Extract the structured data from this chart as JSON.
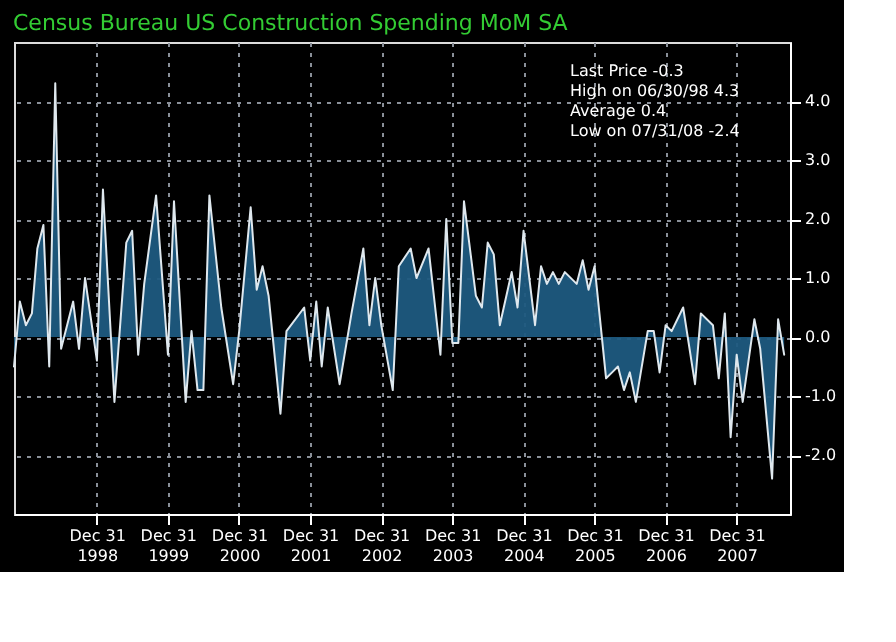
{
  "chart_data": {
    "type": "area",
    "title": "Census Bureau US Construction Spending MoM SA",
    "annotations": [
      "Last Price -0.3",
      "High on 06/30/98 4.3",
      "Average 0.4",
      "Low on 07/31/08 -2.4"
    ],
    "xlim": [
      "1997-11-01",
      "2008-10-01"
    ],
    "xticks": [
      {
        "value": "1998-12-31",
        "label": "Dec 31\n1998"
      },
      {
        "value": "1999-12-31",
        "label": "Dec 31\n1999"
      },
      {
        "value": "2000-12-31",
        "label": "Dec 31\n2000"
      },
      {
        "value": "2001-12-31",
        "label": "Dec 31\n2001"
      },
      {
        "value": "2002-12-31",
        "label": "Dec 31\n2002"
      },
      {
        "value": "2003-12-31",
        "label": "Dec 31\n2003"
      },
      {
        "value": "2004-12-31",
        "label": "Dec 31\n2004"
      },
      {
        "value": "2005-12-31",
        "label": "Dec 31\n2005"
      },
      {
        "value": "2006-12-31",
        "label": "Dec 31\n2006"
      },
      {
        "value": "2007-12-31",
        "label": "Dec 31\n2007"
      }
    ],
    "ylim": [
      -3.0,
      5.0
    ],
    "yticks": [
      {
        "value": -2,
        "label": "-2.0"
      },
      {
        "value": -1,
        "label": "-1.0"
      },
      {
        "value": 0,
        "label": "0.0"
      },
      {
        "value": 1,
        "label": "1.0"
      },
      {
        "value": 2,
        "label": "2.0"
      },
      {
        "value": 3,
        "label": "3.0"
      },
      {
        "value": 4,
        "label": "4.0"
      }
    ],
    "grid": true,
    "series": [
      {
        "color": "#1d5a80",
        "x": [
          "1997-11",
          "1997-12",
          "1998-01",
          "1998-02",
          "1998-03",
          "1998-04",
          "1998-05",
          "1998-06",
          "1998-07",
          "1998-09",
          "1998-10",
          "1998-11",
          "1999-01",
          "1999-02",
          "1999-04",
          "1999-06",
          "1999-07",
          "1999-08",
          "1999-09",
          "1999-11",
          "2000-01",
          "2000-02",
          "2000-04",
          "2000-05",
          "2000-06",
          "2000-07",
          "2000-08",
          "2000-10",
          "2000-12",
          "2001-01",
          "2001-03",
          "2001-04",
          "2001-05",
          "2001-06",
          "2001-08",
          "2001-09",
          "2001-12",
          "2002-01",
          "2002-02",
          "2002-03",
          "2002-04",
          "2002-06",
          "2002-08",
          "2002-10",
          "2002-11",
          "2002-12",
          "2003-01",
          "2003-03",
          "2003-04",
          "2003-06",
          "2003-07",
          "2003-09",
          "2003-11",
          "2003-12",
          "2004-01",
          "2004-02",
          "2004-03",
          "2004-05",
          "2004-06",
          "2004-07",
          "2004-08",
          "2004-09",
          "2004-11",
          "2004-12",
          "2005-01",
          "2005-03",
          "2005-04",
          "2005-05",
          "2005-06",
          "2005-07",
          "2005-08",
          "2005-10",
          "2005-11",
          "2005-12",
          "2006-01",
          "2006-03",
          "2006-04",
          "2006-05",
          "2006-06",
          "2006-07",
          "2006-08",
          "2006-10",
          "2006-11",
          "2006-12",
          "2007-01",
          "2007-02",
          "2007-04",
          "2007-06",
          "2007-07",
          "2007-09",
          "2007-10",
          "2007-11",
          "2007-12",
          "2008-01",
          "2008-02",
          "2008-04",
          "2008-05",
          "2008-07",
          "2008-08",
          "2008-09"
        ],
        "values": [
          -0.5,
          0.6,
          0.2,
          0.4,
          1.5,
          1.9,
          -0.5,
          4.3,
          -0.2,
          0.6,
          -0.2,
          1.0,
          -0.4,
          2.5,
          -1.1,
          1.6,
          1.8,
          -0.3,
          0.9,
          2.4,
          -0.3,
          2.3,
          -1.1,
          0.1,
          -0.9,
          -0.9,
          2.4,
          0.5,
          -0.8,
          0.1,
          2.2,
          0.8,
          1.2,
          0.7,
          -1.3,
          0.1,
          0.5,
          -0.4,
          0.6,
          -0.5,
          0.5,
          -0.8,
          0.4,
          1.5,
          0.2,
          1.0,
          0.2,
          -0.9,
          1.2,
          1.5,
          1.0,
          1.5,
          -0.3,
          2.0,
          -0.1,
          -0.1,
          2.3,
          0.7,
          0.5,
          1.6,
          1.4,
          0.2,
          1.1,
          0.5,
          1.8,
          0.2,
          1.2,
          0.9,
          1.1,
          0.9,
          1.1,
          0.9,
          1.3,
          0.8,
          1.2,
          -0.7,
          -0.6,
          -0.5,
          -0.9,
          -0.6,
          -1.1,
          0.1,
          0.1,
          -0.6,
          0.2,
          0.1,
          0.5,
          -0.8,
          0.4,
          0.2,
          -0.7,
          0.4,
          -1.7,
          -0.3,
          -1.1,
          0.3,
          -0.2,
          -2.4,
          0.3,
          -0.3
        ]
      }
    ]
  }
}
